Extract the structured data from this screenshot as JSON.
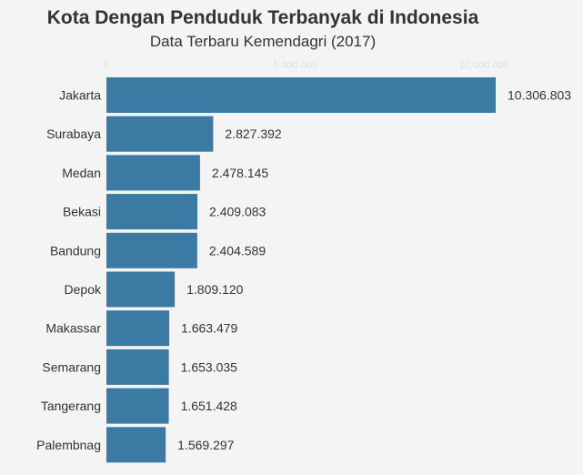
{
  "title": "Kota Dengan Penduduk Terbanyak di Indonesia",
  "subtitle": "Data Terbaru Kemendagri (2017)",
  "colors": {
    "bar": "#3b7ba3",
    "background": "#f4f4f4",
    "tick": "#e0e0e0"
  },
  "chart_data": {
    "type": "bar",
    "orientation": "horizontal",
    "title": "Kota Dengan Penduduk Terbanyak di Indonesia",
    "subtitle": "Data Terbaru Kemendagri (2017)",
    "categories": [
      "Jakarta",
      "Surabaya",
      "Medan",
      "Bekasi",
      "Bandung",
      "Depok",
      "Makassar",
      "Semarang",
      "Tangerang",
      "Palembnag"
    ],
    "values": [
      10306803,
      2827392,
      2478145,
      2409083,
      2404589,
      1809120,
      1663479,
      1653035,
      1651428,
      1569297
    ],
    "value_labels": [
      "10.306.803",
      "2.827.392",
      "2.478.145",
      "2.409.083",
      "2.404.589",
      "1.809.120",
      "1.663.479",
      "1.653.035",
      "1.651.428",
      "1.569.297"
    ],
    "xticks": [
      0,
      5000000,
      10000000
    ],
    "xtick_labels": [
      "0",
      "5.000.000",
      "10.000.000"
    ],
    "xlim": [
      0,
      10306803
    ],
    "xlabel": "",
    "ylabel": "",
    "grid": false,
    "legend": "none"
  }
}
